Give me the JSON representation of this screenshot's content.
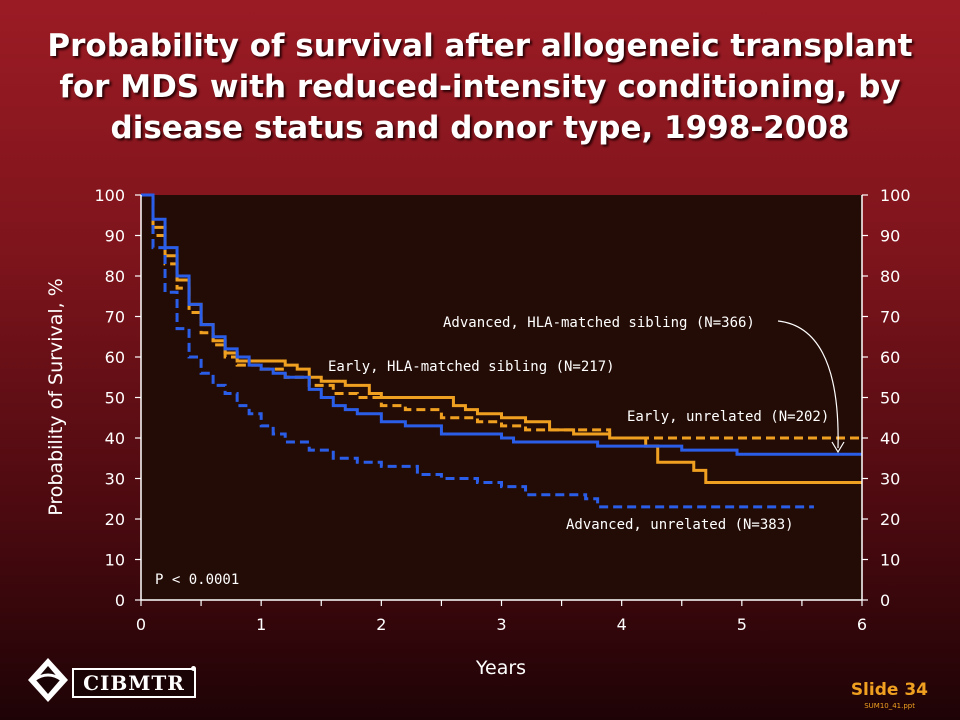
{
  "slide": {
    "title": "Probability of survival after allogeneic transplant for MDS with reduced-intensity conditioning, by disease status and donor type, 1998-2008",
    "slide_number": "Slide 34",
    "file_ref": "SUM10_41.ppt",
    "logo_text": "CIBMTR"
  },
  "colors": {
    "plot_background": "#240c06",
    "orange": "#f0a020",
    "blue": "#2a5ee8",
    "text": "#ffffff"
  },
  "chart_data": {
    "type": "line",
    "title": "Probability of survival after allogeneic transplant for MDS with reduced-intensity conditioning, by disease status and donor type, 1998-2008",
    "xlabel": "Years",
    "ylabel": "Probability of Survival, %",
    "xlim": [
      0,
      6
    ],
    "ylim": [
      0,
      100
    ],
    "x_ticks": [
      0,
      1,
      2,
      3,
      4,
      5,
      6
    ],
    "y_ticks": [
      0,
      10,
      20,
      30,
      40,
      50,
      60,
      70,
      80,
      90,
      100
    ],
    "y_axis_both_sides": true,
    "step": true,
    "series": [
      {
        "name": "Early, HLA-matched sibling (N=217)",
        "color": "#f0a020",
        "dash": "solid",
        "x": [
          0,
          0.1,
          0.2,
          0.3,
          0.4,
          0.5,
          0.6,
          0.7,
          0.8,
          1.0,
          1.2,
          1.3,
          1.4,
          1.5,
          1.7,
          1.9,
          2.0,
          2.5,
          2.6,
          2.7,
          2.8,
          3.0,
          3.2,
          3.4,
          3.6,
          3.8,
          3.9,
          4.2,
          4.3,
          4.5,
          4.6,
          4.7,
          6.0
        ],
        "y": [
          100,
          92,
          85,
          79,
          73,
          68,
          64,
          61,
          59,
          59,
          58,
          57,
          55,
          54,
          53,
          51,
          50,
          50,
          48,
          47,
          46,
          45,
          44,
          42,
          41,
          41,
          40,
          38,
          34,
          34,
          32,
          29,
          29
        ]
      },
      {
        "name": "Early, unrelated (N=202)",
        "color": "#f0a020",
        "dash": "dashed",
        "x": [
          0,
          0.1,
          0.2,
          0.3,
          0.4,
          0.5,
          0.6,
          0.7,
          0.8,
          1.0,
          1.2,
          1.4,
          1.6,
          1.8,
          2.0,
          2.2,
          2.5,
          2.8,
          3.0,
          3.2,
          3.5,
          3.9,
          6.0
        ],
        "y": [
          100,
          90,
          83,
          77,
          71,
          66,
          63,
          60,
          58,
          57,
          55,
          53,
          51,
          50,
          48,
          47,
          45,
          44,
          43,
          42,
          42,
          40,
          40
        ]
      },
      {
        "name": "Advanced, HLA-matched sibling (N=366)",
        "color": "#2a5ee8",
        "dash": "solid",
        "x": [
          0,
          0.1,
          0.2,
          0.3,
          0.4,
          0.5,
          0.6,
          0.7,
          0.8,
          0.9,
          1.0,
          1.1,
          1.2,
          1.4,
          1.5,
          1.6,
          1.7,
          1.8,
          2.0,
          2.2,
          2.5,
          3.0,
          3.1,
          3.5,
          3.8,
          4.5,
          4.96,
          6.0
        ],
        "y": [
          100,
          94,
          87,
          80,
          73,
          68,
          65,
          62,
          60,
          58,
          57,
          56,
          55,
          52,
          50,
          48,
          47,
          46,
          44,
          43,
          41,
          40,
          39,
          39,
          38,
          37,
          36,
          36
        ]
      },
      {
        "name": "Advanced, unrelated (N=383)",
        "color": "#2a5ee8",
        "dash": "dashed",
        "x": [
          0,
          0.1,
          0.2,
          0.3,
          0.4,
          0.5,
          0.6,
          0.7,
          0.8,
          0.9,
          1.0,
          1.1,
          1.2,
          1.4,
          1.6,
          1.8,
          2.0,
          2.3,
          2.5,
          2.8,
          3.0,
          3.2,
          3.5,
          3.7,
          3.8,
          4.2,
          5.6
        ],
        "y": [
          100,
          87,
          76,
          67,
          60,
          56,
          53,
          51,
          48,
          46,
          43,
          41,
          39,
          37,
          35,
          34,
          33,
          31,
          30,
          29,
          28,
          26,
          26,
          25,
          23,
          23,
          23
        ]
      }
    ],
    "annotations": {
      "p_value": "P < 0.0001",
      "label_early_sib": "Early,  HLA-matched sibling (N=217)",
      "label_early_unrel": "Early, unrelated (N=202)",
      "label_adv_sib": "Advanced, HLA-matched sibling (N=366)",
      "label_adv_unrel": "Advanced, unrelated (N=383)"
    }
  }
}
